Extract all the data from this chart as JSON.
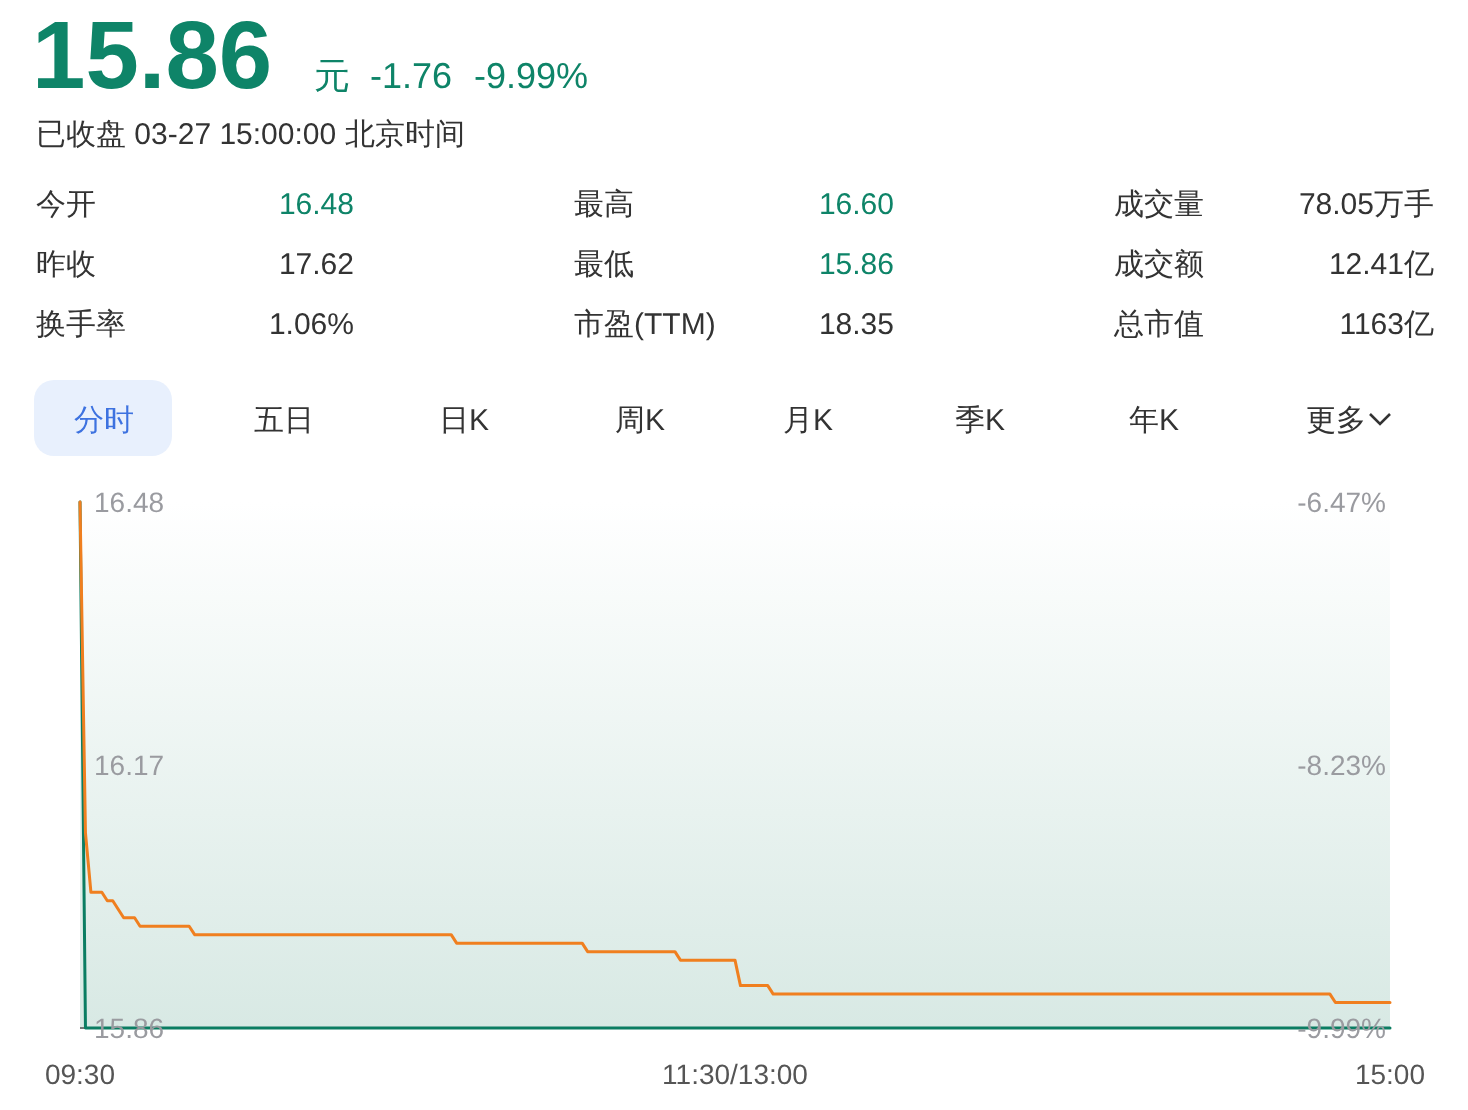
{
  "chart_data": [
    {
      "type": "other",
      "title": "15.86",
      "annotations": [
        "元",
        "-1.76",
        "-9.99%",
        "已收盘 03-27 15:00:00 北京时间",
        "今开",
        "16.48",
        "最高",
        "16.60",
        "成交量",
        "78.05万手",
        "昨收",
        "17.62",
        "最低",
        "15.86",
        "成交额",
        "12.41亿",
        "换手率",
        "1.06%",
        "市盈(TTM)",
        "18.35",
        "总市值",
        "1163亿",
        "分时",
        "五日",
        "日K",
        "周K",
        "月K",
        "季K",
        "年K",
        "更多"
      ]
    },
    {
      "type": "line",
      "categories": [
        "09:30",
        null,
        null,
        null,
        null,
        null,
        null,
        null,
        null,
        null,
        null,
        null,
        null,
        null,
        null,
        null,
        null,
        null,
        null,
        null,
        null,
        null,
        null,
        null,
        null,
        null,
        null,
        null,
        null,
        null,
        null,
        null,
        null,
        null,
        null,
        null,
        null,
        null,
        null,
        null,
        null,
        null,
        null,
        null,
        null,
        null,
        null,
        null,
        null,
        null,
        null,
        null,
        null,
        null,
        null,
        null,
        null,
        null,
        null,
        null,
        null,
        null,
        null,
        null,
        null,
        null,
        null,
        null,
        null,
        null,
        null,
        null,
        null,
        null,
        null,
        null,
        null,
        null,
        null,
        null,
        null,
        null,
        null,
        null,
        null,
        null,
        null,
        null,
        null,
        null,
        null,
        null,
        null,
        null,
        null,
        null,
        null,
        null,
        null,
        null,
        null,
        null,
        null,
        null,
        null,
        null,
        null,
        null,
        null,
        null,
        null,
        null,
        null,
        null,
        null,
        null,
        null,
        null,
        null,
        null,
        "11:30/13:00",
        null,
        null,
        null,
        null,
        null,
        null,
        null,
        null,
        null,
        null,
        null,
        null,
        null,
        null,
        null,
        null,
        null,
        null,
        null,
        null,
        null,
        null,
        null,
        null,
        null,
        null,
        null,
        null,
        null,
        null,
        null,
        null,
        null,
        null,
        null,
        null,
        null,
        null,
        null,
        null,
        null,
        null,
        null,
        null,
        null,
        null,
        null,
        null,
        null,
        null,
        null,
        null,
        null,
        null,
        null,
        null,
        null,
        null,
        null,
        null,
        null,
        null,
        null,
        null,
        null,
        null,
        null,
        null,
        null,
        null,
        null,
        null,
        null,
        null,
        null,
        null,
        null,
        null,
        null,
        null,
        null,
        null,
        null,
        null,
        null,
        null,
        null,
        null,
        null,
        null,
        null,
        null,
        null,
        null,
        null,
        null,
        null,
        null,
        null,
        null,
        null,
        null,
        null,
        null,
        null,
        null,
        null,
        null,
        null,
        null,
        null,
        null,
        null,
        null,
        null,
        null,
        null,
        null,
        null,
        "15:00"
      ],
      "ylim": [
        15.86,
        16.48
      ],
      "yticks": [
        15.86,
        16.17,
        16.48
      ],
      "y2lim": [
        -9.99,
        -6.47
      ],
      "y2ticks": [
        {
          "value": -9.99,
          "label": "-9.99%"
        },
        {
          "value": -8.23,
          "label": "-8.23%"
        },
        {
          "value": -6.47,
          "label": "-6.47%"
        }
      ],
      "line_style": "solid",
      "marker": "none",
      "series": [
        {
          "color": "#0b7d62",
          "values": [
            16.48,
            15.86,
            15.86,
            15.86,
            15.86,
            15.86,
            15.86,
            15.86,
            15.86,
            15.86,
            15.86,
            15.86,
            15.86,
            15.86,
            15.86,
            15.86,
            15.86,
            15.86,
            15.86,
            15.86,
            15.86,
            15.86,
            15.86,
            15.86,
            15.86,
            15.86,
            15.86,
            15.86,
            15.86,
            15.86,
            15.86,
            15.86,
            15.86,
            15.86,
            15.86,
            15.86,
            15.86,
            15.86,
            15.86,
            15.86,
            15.86,
            15.86,
            15.86,
            15.86,
            15.86,
            15.86,
            15.86,
            15.86,
            15.86,
            15.86,
            15.86,
            15.86,
            15.86,
            15.86,
            15.86,
            15.86,
            15.86,
            15.86,
            15.86,
            15.86,
            15.86,
            15.86,
            15.86,
            15.86,
            15.86,
            15.86,
            15.86,
            15.86,
            15.86,
            15.86,
            15.86,
            15.86,
            15.86,
            15.86,
            15.86,
            15.86,
            15.86,
            15.86,
            15.86,
            15.86,
            15.86,
            15.86,
            15.86,
            15.86,
            15.86,
            15.86,
            15.86,
            15.86,
            15.86,
            15.86,
            15.86,
            15.86,
            15.86,
            15.86,
            15.86,
            15.86,
            15.86,
            15.86,
            15.86,
            15.86,
            15.86,
            15.86,
            15.86,
            15.86,
            15.86,
            15.86,
            15.86,
            15.86,
            15.86,
            15.86,
            15.86,
            15.86,
            15.86,
            15.86,
            15.86,
            15.86,
            15.86,
            15.86,
            15.86,
            15.86,
            15.86,
            15.86,
            15.86,
            15.86,
            15.86,
            15.86,
            15.86,
            15.86,
            15.86,
            15.86,
            15.86,
            15.86,
            15.86,
            15.86,
            15.86,
            15.86,
            15.86,
            15.86,
            15.86,
            15.86,
            15.86,
            15.86,
            15.86,
            15.86,
            15.86,
            15.86,
            15.86,
            15.86,
            15.86,
            15.86,
            15.86,
            15.86,
            15.86,
            15.86,
            15.86,
            15.86,
            15.86,
            15.86,
            15.86,
            15.86,
            15.86,
            15.86,
            15.86,
            15.86,
            15.86,
            15.86,
            15.86,
            15.86,
            15.86,
            15.86,
            15.86,
            15.86,
            15.86,
            15.86,
            15.86,
            15.86,
            15.86,
            15.86,
            15.86,
            15.86,
            15.86,
            15.86,
            15.86,
            15.86,
            15.86,
            15.86,
            15.86,
            15.86,
            15.86,
            15.86,
            15.86,
            15.86,
            15.86,
            15.86,
            15.86,
            15.86,
            15.86,
            15.86,
            15.86,
            15.86,
            15.86,
            15.86,
            15.86,
            15.86,
            15.86,
            15.86,
            15.86,
            15.86,
            15.86,
            15.86,
            15.86,
            15.86,
            15.86,
            15.86,
            15.86,
            15.86,
            15.86,
            15.86,
            15.86,
            15.86,
            15.86,
            15.86,
            15.86,
            15.86,
            15.86,
            15.86,
            15.86,
            15.86,
            15.86,
            15.86,
            15.86,
            15.86,
            15.86,
            15.86,
            15.86,
            15.86,
            15.86,
            15.86,
            15.86,
            15.86,
            15.86
          ]
        },
        {
          "color": "#f07f1f",
          "values": [
            16.48,
            16.09,
            16.02,
            16.02,
            16.02,
            16.01,
            16.01,
            16.0,
            15.99,
            15.99,
            15.99,
            15.98,
            15.98,
            15.98,
            15.98,
            15.98,
            15.98,
            15.98,
            15.98,
            15.98,
            15.98,
            15.97,
            15.97,
            15.97,
            15.97,
            15.97,
            15.97,
            15.97,
            15.97,
            15.97,
            15.97,
            15.97,
            15.97,
            15.97,
            15.97,
            15.97,
            15.97,
            15.97,
            15.97,
            15.97,
            15.97,
            15.97,
            15.97,
            15.97,
            15.97,
            15.97,
            15.97,
            15.97,
            15.97,
            15.97,
            15.97,
            15.97,
            15.97,
            15.97,
            15.97,
            15.97,
            15.97,
            15.97,
            15.97,
            15.97,
            15.97,
            15.97,
            15.97,
            15.97,
            15.97,
            15.97,
            15.97,
            15.97,
            15.97,
            15.96,
            15.96,
            15.96,
            15.96,
            15.96,
            15.96,
            15.96,
            15.96,
            15.96,
            15.96,
            15.96,
            15.96,
            15.96,
            15.96,
            15.96,
            15.96,
            15.96,
            15.96,
            15.96,
            15.96,
            15.96,
            15.96,
            15.96,
            15.96,
            15.95,
            15.95,
            15.95,
            15.95,
            15.95,
            15.95,
            15.95,
            15.95,
            15.95,
            15.95,
            15.95,
            15.95,
            15.95,
            15.95,
            15.95,
            15.95,
            15.95,
            15.94,
            15.94,
            15.94,
            15.94,
            15.94,
            15.94,
            15.94,
            15.94,
            15.94,
            15.94,
            15.94,
            15.91,
            15.91,
            15.91,
            15.91,
            15.91,
            15.91,
            15.9,
            15.9,
            15.9,
            15.9,
            15.9,
            15.9,
            15.9,
            15.9,
            15.9,
            15.9,
            15.9,
            15.9,
            15.9,
            15.9,
            15.9,
            15.9,
            15.9,
            15.9,
            15.9,
            15.9,
            15.9,
            15.9,
            15.9,
            15.9,
            15.9,
            15.9,
            15.9,
            15.9,
            15.9,
            15.9,
            15.9,
            15.9,
            15.9,
            15.9,
            15.9,
            15.9,
            15.9,
            15.9,
            15.9,
            15.9,
            15.9,
            15.9,
            15.9,
            15.9,
            15.9,
            15.9,
            15.9,
            15.9,
            15.9,
            15.9,
            15.9,
            15.9,
            15.9,
            15.9,
            15.9,
            15.9,
            15.9,
            15.9,
            15.9,
            15.9,
            15.9,
            15.9,
            15.9,
            15.9,
            15.9,
            15.9,
            15.9,
            15.9,
            15.9,
            15.9,
            15.9,
            15.9,
            15.9,
            15.9,
            15.9,
            15.9,
            15.9,
            15.9,
            15.9,
            15.9,
            15.9,
            15.9,
            15.9,
            15.9,
            15.9,
            15.9,
            15.9,
            15.9,
            15.9,
            15.9,
            15.9,
            15.9,
            15.9,
            15.9,
            15.9,
            15.9,
            15.9,
            15.9,
            15.9,
            15.9,
            15.9,
            15.9,
            15.9,
            15.89,
            15.89,
            15.89,
            15.89,
            15.89,
            15.89,
            15.89,
            15.89,
            15.89,
            15.89,
            15.89
          ]
        }
      ]
    }
  ]
}
